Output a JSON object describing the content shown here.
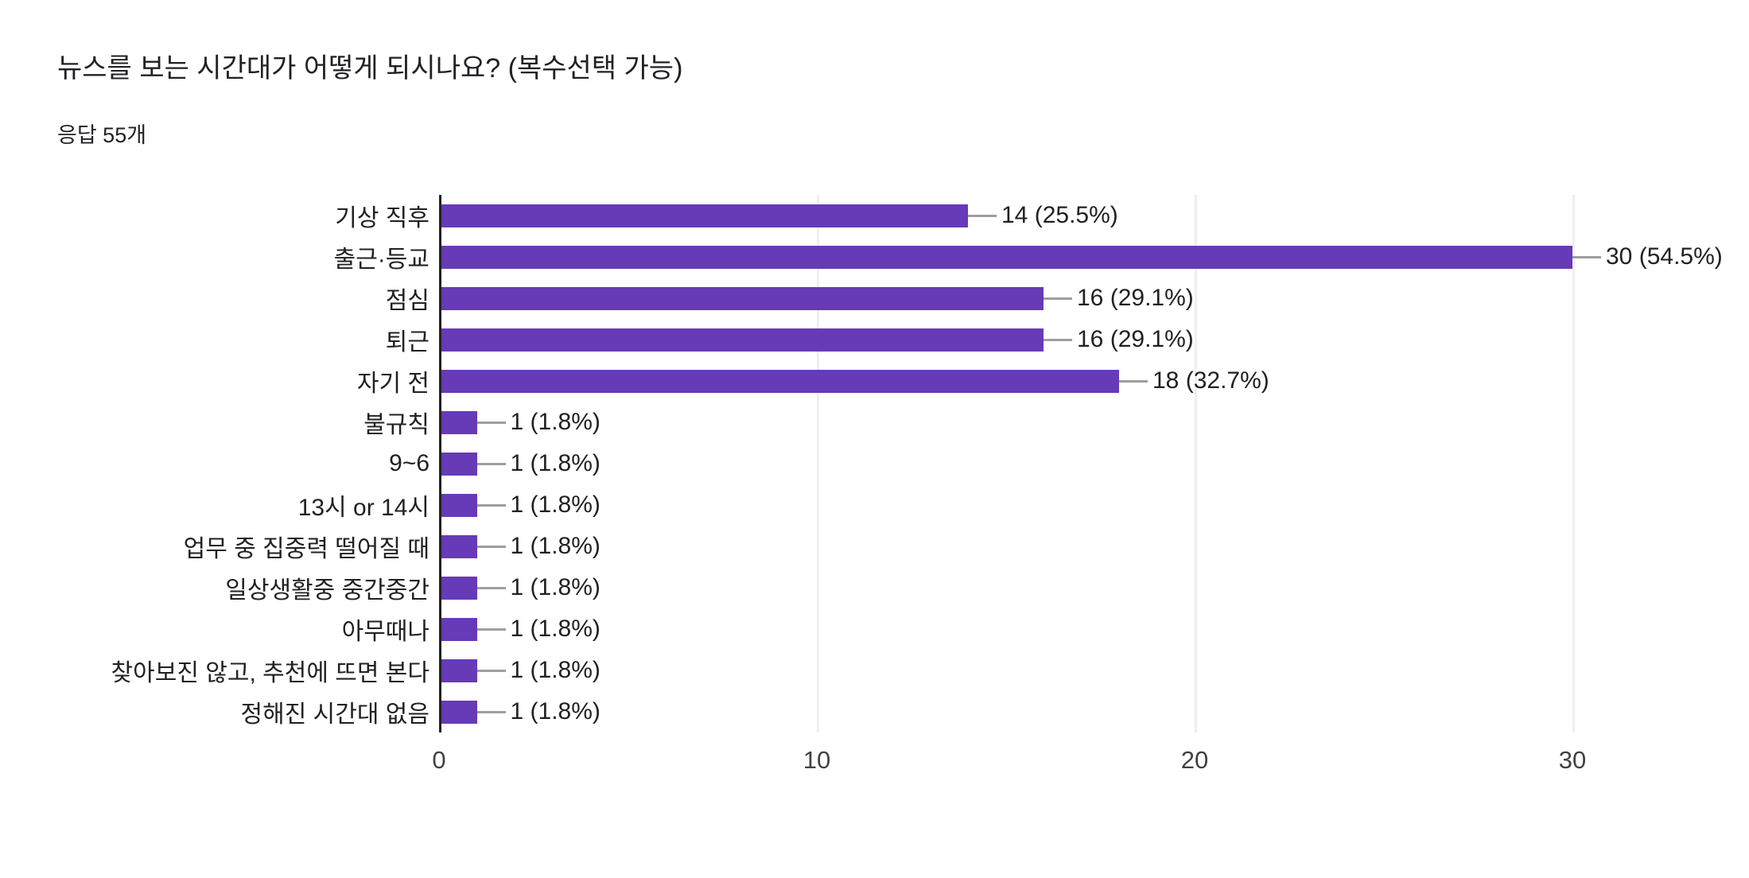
{
  "header": {
    "title": "뉴스를 보는 시간대가 어떻게 되시나요? (복수선택 가능)",
    "subtitle": "응답 55개"
  },
  "chart_data": {
    "type": "bar",
    "orientation": "horizontal",
    "title": "뉴스를 보는 시간대가 어떻게 되시나요? (복수선택 가능)",
    "subtitle": "응답 55개",
    "categories": [
      "기상 직후",
      "출근·등교",
      "점심",
      "퇴근",
      "자기 전",
      "불규칙",
      "9~6",
      "13시 or 14시",
      "업무 중 집중력 떨어질 때",
      "일상생활중 중간중간",
      "아무때나",
      "찾아보진 않고, 추천에 뜨면 본다",
      "정해진 시간대 없음"
    ],
    "values": [
      14,
      30,
      16,
      16,
      18,
      1,
      1,
      1,
      1,
      1,
      1,
      1,
      1
    ],
    "value_labels": [
      "14 (25.5%)",
      "30 (54.5%)",
      "16 (29.1%)",
      "16 (29.1%)",
      "18 (32.7%)",
      "1 (1.8%)",
      "1 (1.8%)",
      "1 (1.8%)",
      "1 (1.8%)",
      "1 (1.8%)",
      "1 (1.8%)",
      "1 (1.8%)",
      "1 (1.8%)"
    ],
    "x_ticks": [
      "0",
      "10",
      "20",
      "30"
    ],
    "xlim": [
      0,
      30
    ],
    "legend": "none",
    "grid": "vertical",
    "colors": {
      "bar": "#673ab7",
      "axis": "#212121",
      "gridline": "#efefef",
      "connector": "#9e9e9e",
      "label_text": "#212121",
      "tick_text": "#424242",
      "background": "#ffffff"
    }
  }
}
